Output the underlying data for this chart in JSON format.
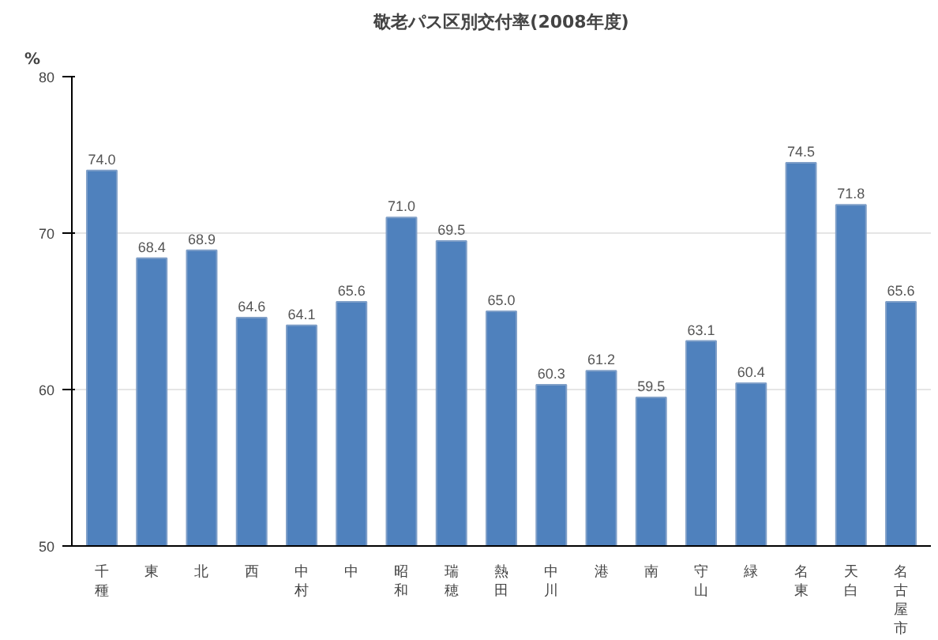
{
  "chart_data": {
    "type": "bar",
    "title": "敬老パス区別交付率(2008年度)",
    "ylabel": "%",
    "categories": [
      "千種",
      "東",
      "北",
      "西",
      "中村",
      "中",
      "昭和",
      "瑞穂",
      "熱田",
      "中川",
      "港",
      "南",
      "守山",
      "緑",
      "名東",
      "天白",
      "名古屋市"
    ],
    "values": [
      74.0,
      68.4,
      68.9,
      64.6,
      64.1,
      65.6,
      71.0,
      69.5,
      65.0,
      60.3,
      61.2,
      59.5,
      63.1,
      60.4,
      74.5,
      71.8,
      65.6
    ],
    "color": "#4f81bd",
    "ylim": [
      50,
      80
    ],
    "yticks": [
      50,
      60,
      70,
      80
    ],
    "grid": "y",
    "value_labels": [
      "74.0",
      "68.4",
      "68.9",
      "64.6",
      "64.1",
      "65.6",
      "71.0",
      "69.5",
      "65.0",
      "60.3",
      "61.2",
      "59.5",
      "63.1",
      "60.4",
      "74.5",
      "71.8",
      "65.6"
    ]
  }
}
